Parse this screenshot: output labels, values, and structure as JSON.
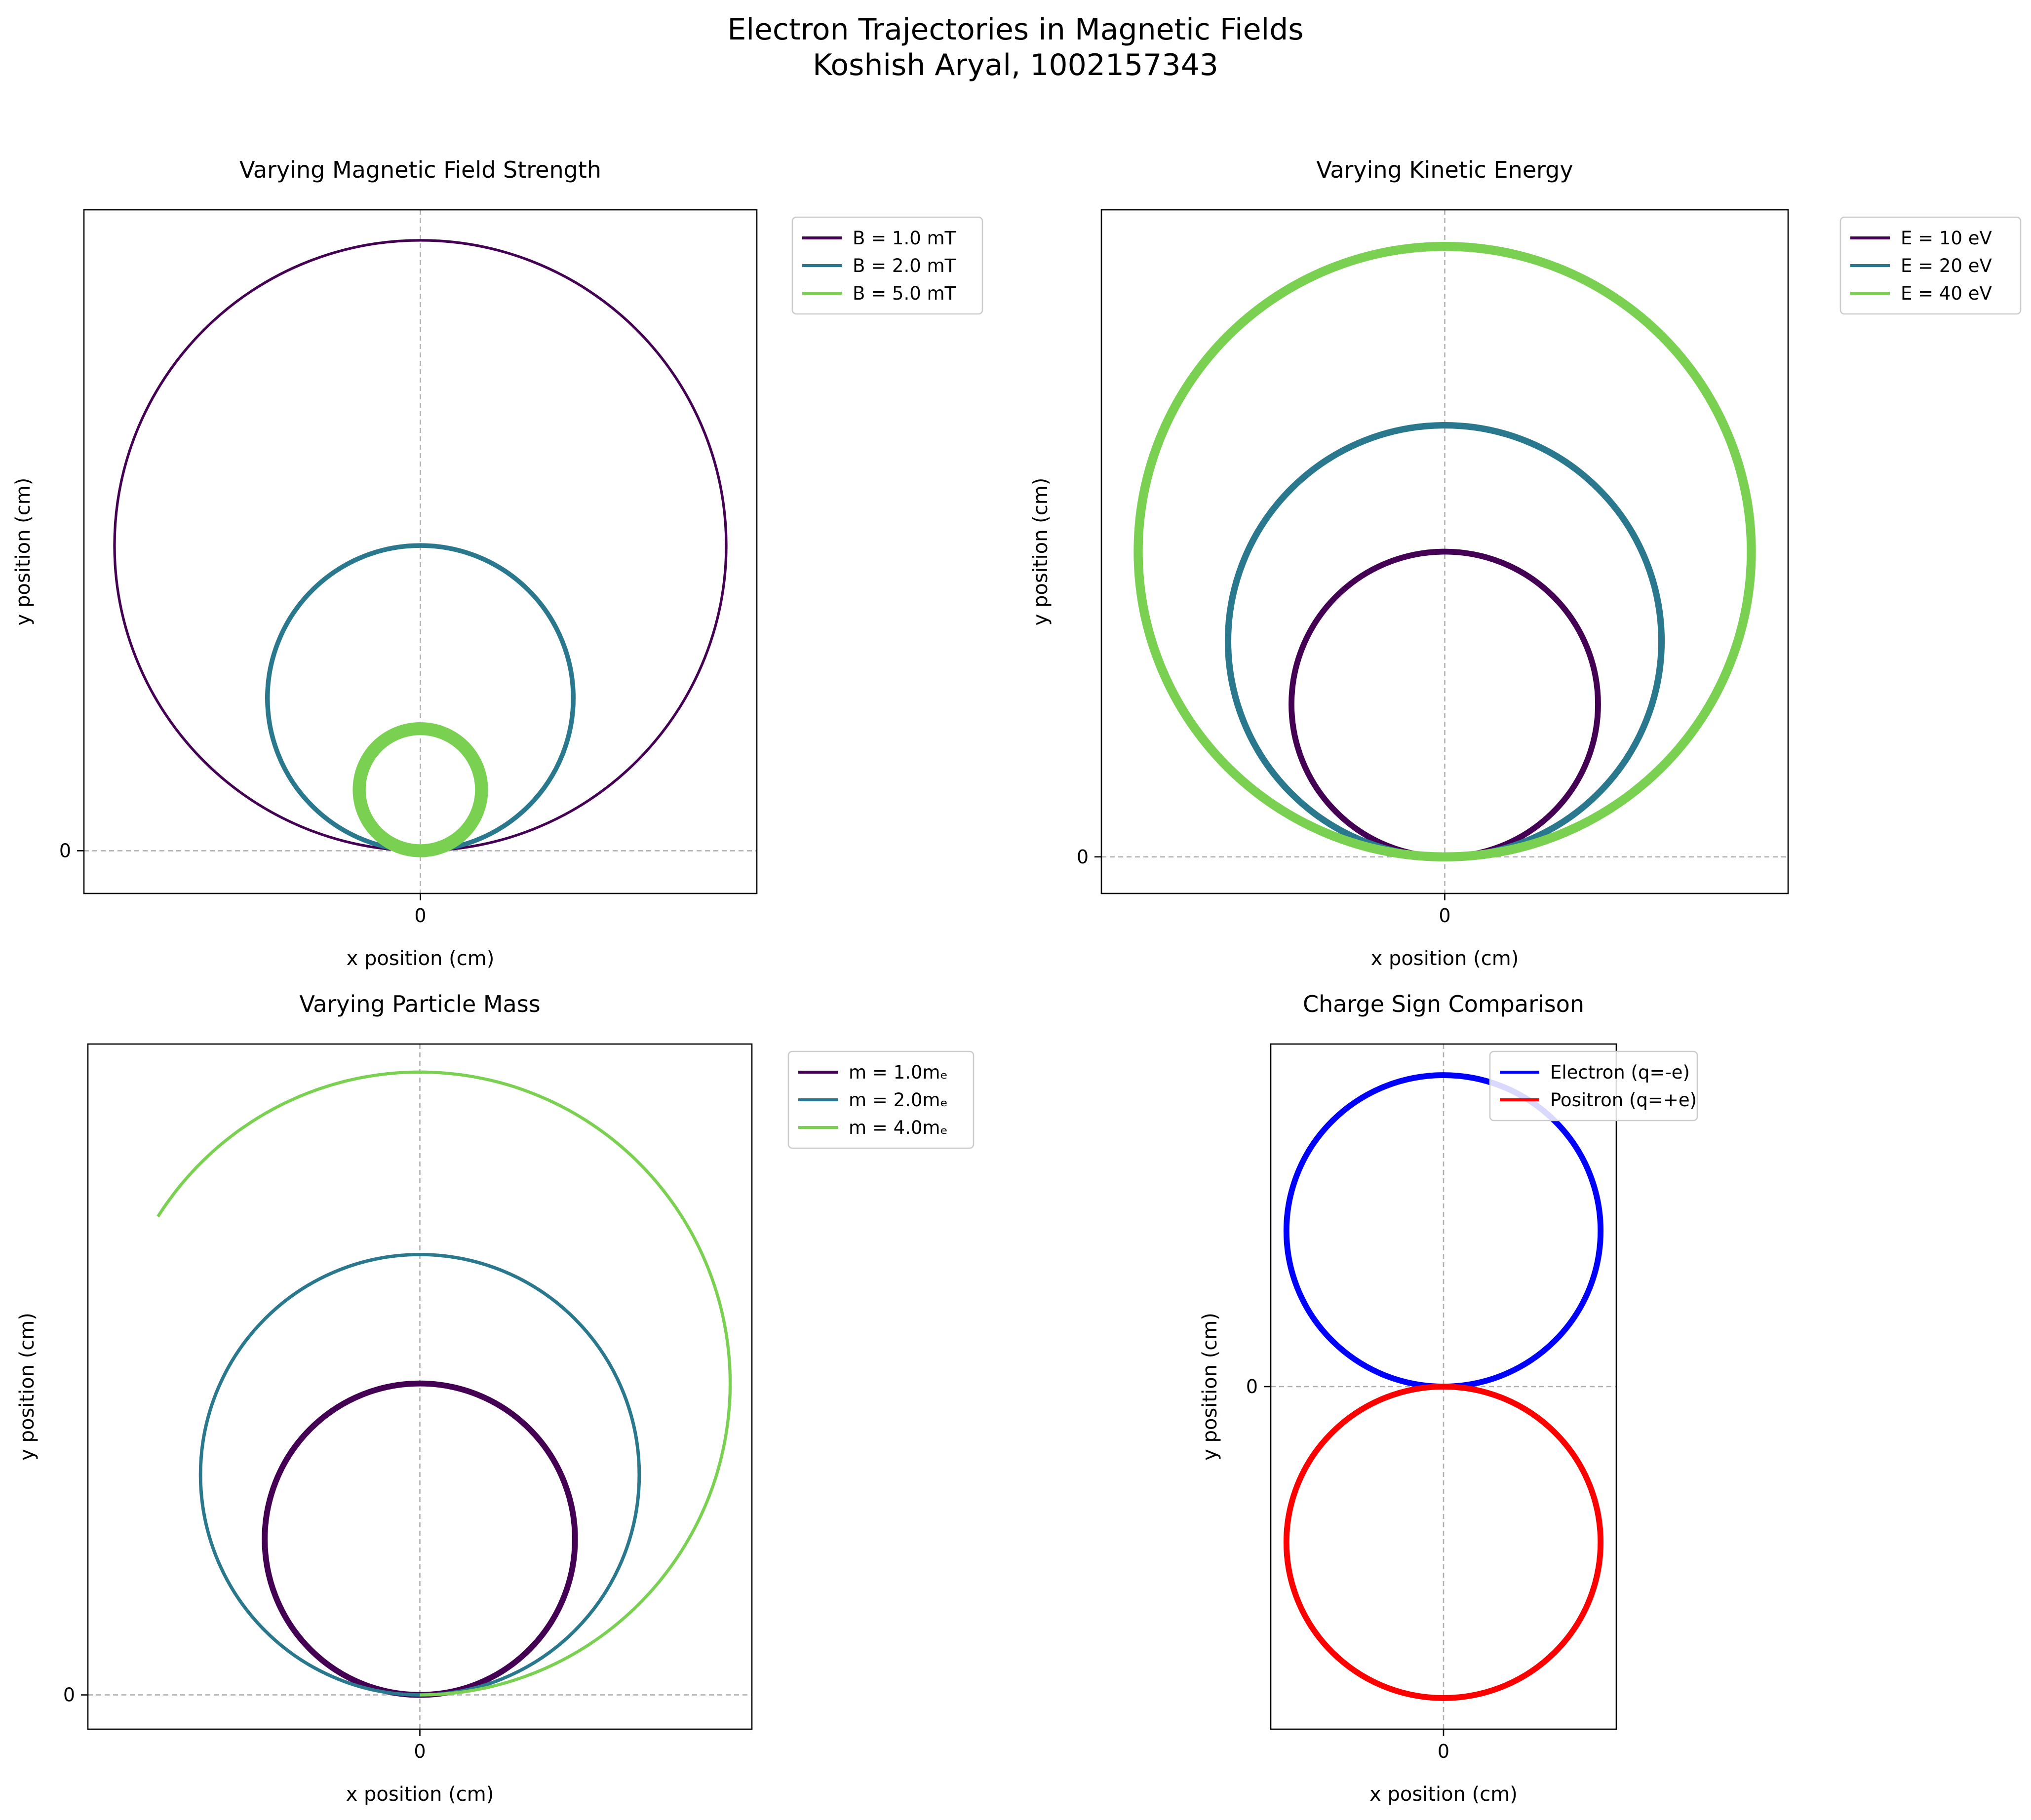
{
  "figure": {
    "title_line1": "Electron Trajectories in Magnetic Fields",
    "title_line2": "Koshish Aryal, 1002157343"
  },
  "chart_data": [
    {
      "type": "line",
      "title": "Varying Magnetic Field Strength",
      "xlabel": "x position (cm)",
      "ylabel": "y position (cm)",
      "xticks": [
        0
      ],
      "yticks": [
        0
      ],
      "xlim": [
        -11.0,
        11.0
      ],
      "ylim": [
        -1.4,
        21.0
      ],
      "grid": "zero-lines",
      "legend_position": "outside-right",
      "series": [
        {
          "name": "B = 1.0 mT",
          "color": "#440154",
          "cx": 0,
          "cy": 10.0,
          "r": 10.0,
          "stroke": 2.0
        },
        {
          "name": "B = 2.0 mT",
          "color": "#2a788e",
          "cx": 0,
          "cy": 5.0,
          "r": 5.0,
          "stroke": 3.6
        },
        {
          "name": "B = 5.0 mT",
          "color": "#7ad151",
          "cx": 0,
          "cy": 2.0,
          "r": 2.0,
          "stroke": 10.0
        }
      ]
    },
    {
      "type": "line",
      "title": "Varying Kinetic Energy",
      "xlabel": "x position (cm)",
      "ylabel": "y position (cm)",
      "xticks": [
        0
      ],
      "yticks": [
        0
      ],
      "xlim": [
        -11.2,
        11.2
      ],
      "ylim": [
        -1.2,
        21.2
      ],
      "grid": "zero-lines",
      "legend_position": "outside-right",
      "series": [
        {
          "name": "E = 10 eV",
          "color": "#440154",
          "cx": 0,
          "cy": 5.0,
          "r": 5.0,
          "stroke": 4.5
        },
        {
          "name": "E = 20 eV",
          "color": "#2a788e",
          "cx": 0,
          "cy": 7.07,
          "r": 7.07,
          "stroke": 5.0
        },
        {
          "name": "E = 40 eV",
          "color": "#7ad151",
          "cx": 0,
          "cy": 10.0,
          "r": 10.0,
          "stroke": 7.0
        }
      ]
    },
    {
      "type": "line",
      "title": "Varying Particle Mass",
      "xlabel": "x position (cm)",
      "ylabel": "y position (cm)",
      "xticks": [
        0
      ],
      "yticks": [
        0
      ],
      "xlim": [
        -10.7,
        10.7
      ],
      "ylim": [
        -1.1,
        20.9
      ],
      "grid": "zero-lines",
      "legend_position": "outside-right",
      "series": [
        {
          "name": "m = 1.0mₑ",
          "color": "#440154",
          "cx": 0,
          "cy": 5.0,
          "r": 5.0,
          "stroke": 4.5
        },
        {
          "name": "m = 2.0mₑ",
          "color": "#2a788e",
          "cx": 0,
          "cy": 7.07,
          "r": 7.07,
          "stroke": 2.6
        },
        {
          "name": "m = 4.0mₑ",
          "color": "#7ad151",
          "cx": 0,
          "cy": 10.0,
          "r": 10.0,
          "stroke": 2.4,
          "arc_fraction": 0.66
        }
      ]
    },
    {
      "type": "line",
      "title": "Charge Sign Comparison",
      "xlabel": "x position (cm)",
      "ylabel": "y position (cm)",
      "xticks": [
        0
      ],
      "yticks": [
        0
      ],
      "xlim": [
        -5.5,
        5.5
      ],
      "ylim": [
        -11.0,
        11.0
      ],
      "grid": "zero-lines",
      "legend_position": "upper right",
      "series": [
        {
          "name": "Electron (q=-e)",
          "color": "#0000ff",
          "cx": 0,
          "cy": 5.0,
          "r": 5.0,
          "stroke": 4.5
        },
        {
          "name": "Positron (q=+e)",
          "color": "#ff0000",
          "cx": 0,
          "cy": -5.0,
          "r": 5.0,
          "stroke": 4.5
        }
      ]
    }
  ]
}
